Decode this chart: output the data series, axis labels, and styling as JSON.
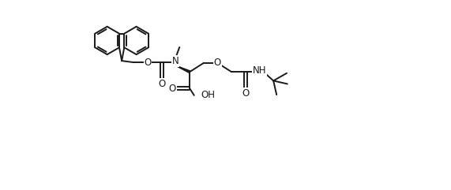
{
  "bg_color": "#ffffff",
  "line_color": "#1a1a1a",
  "line_width": 1.4,
  "font_size": 8.5,
  "figsize": [
    5.71,
    2.41
  ],
  "dpi": 100,
  "xlim": [
    0,
    10.5
  ],
  "ylim": [
    -1.8,
    4.2
  ]
}
